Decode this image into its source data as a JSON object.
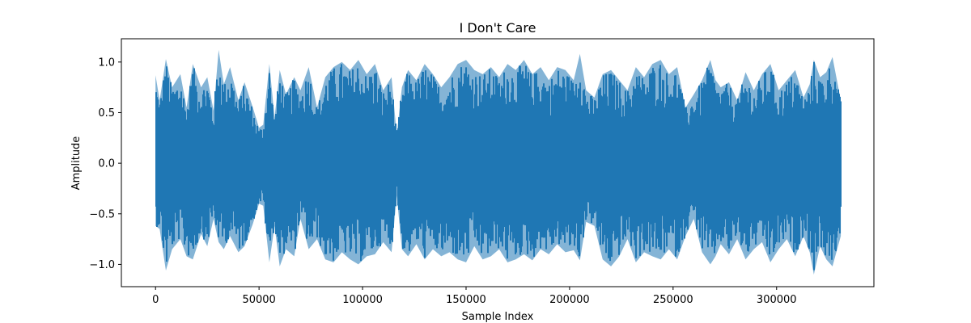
{
  "chart_data": {
    "type": "line",
    "title": "I Don't Care",
    "xlabel": "Sample Index",
    "ylabel": "Amplitude",
    "xlim": [
      -16500,
      347000
    ],
    "ylim": [
      -1.22,
      1.23
    ],
    "x_ticks": [
      0,
      50000,
      100000,
      150000,
      200000,
      250000,
      300000
    ],
    "x_tick_labels": [
      "0",
      "50000",
      "100000",
      "150000",
      "200000",
      "250000",
      "300000"
    ],
    "y_ticks": [
      -1.0,
      -0.5,
      0.0,
      0.5,
      1.0
    ],
    "y_tick_labels": [
      "−1.0",
      "−0.5",
      "0.0",
      "0.5",
      "1.0"
    ],
    "grid": false,
    "series": [
      {
        "color": "#1f77b4",
        "x_start": 0,
        "x_end": 331000,
        "envelope": {
          "x": [
            0,
            2000,
            5000,
            8000,
            12000,
            15000,
            18000,
            22000,
            25000,
            28000,
            30500,
            33000,
            36000,
            40000,
            43000,
            47000,
            50000,
            52000,
            55000,
            57500,
            60000,
            63000,
            67000,
            70000,
            74000,
            78000,
            82000,
            86000,
            90000,
            94000,
            98000,
            102000,
            106000,
            110000,
            114000,
            116500,
            119000,
            122000,
            126000,
            130000,
            134000,
            138000,
            142000,
            146000,
            150000,
            154000,
            158000,
            162000,
            166000,
            170000,
            174000,
            178000,
            182000,
            186000,
            190000,
            194000,
            198000,
            202000,
            205000,
            208000,
            212000,
            216000,
            220000,
            224000,
            228000,
            232000,
            236000,
            240000,
            244000,
            248000,
            252000,
            256000,
            260000,
            264000,
            268000,
            270500,
            273000,
            277000,
            281000,
            285000,
            289000,
            293000,
            297000,
            301000,
            305000,
            309000,
            313000,
            316000,
            318000,
            321000,
            324000,
            327000,
            331000
          ],
          "upper": [
            0.87,
            0.62,
            1.03,
            0.75,
            0.88,
            0.55,
            0.98,
            0.75,
            0.85,
            0.52,
            1.12,
            0.78,
            0.95,
            0.62,
            0.8,
            0.55,
            0.35,
            0.38,
            0.98,
            0.45,
            0.92,
            0.68,
            0.85,
            0.72,
            0.95,
            0.55,
            0.85,
            0.95,
            1.0,
            0.92,
            1.02,
            0.88,
            0.98,
            0.72,
            0.85,
            0.28,
            0.75,
            0.92,
            0.82,
            0.98,
            0.88,
            0.75,
            0.85,
            0.98,
            1.02,
            0.92,
            0.88,
            0.95,
            0.85,
            0.98,
            0.92,
            1.02,
            0.88,
            0.95,
            0.82,
            0.95,
            0.92,
            0.82,
            1.08,
            0.72,
            0.65,
            0.88,
            0.92,
            0.82,
            0.72,
            0.95,
            0.85,
            0.98,
            1.02,
            0.88,
            0.95,
            0.55,
            0.68,
            0.82,
            1.02,
            0.82,
            0.75,
            0.8,
            0.62,
            0.9,
            0.72,
            0.88,
            0.98,
            0.72,
            0.82,
            0.92,
            0.65,
            0.78,
            1.02,
            0.85,
            0.9,
            1.05,
            0.62
          ],
          "lower": [
            -0.62,
            -0.65,
            -1.06,
            -0.85,
            -0.75,
            -0.92,
            -0.95,
            -0.7,
            -0.82,
            -0.55,
            -0.78,
            -0.85,
            -0.72,
            -0.88,
            -0.82,
            -0.6,
            -0.4,
            -0.42,
            -0.98,
            -0.62,
            -1.02,
            -0.85,
            -0.92,
            -0.55,
            -0.85,
            -0.75,
            -0.95,
            -0.98,
            -0.88,
            -0.95,
            -1.0,
            -0.92,
            -0.9,
            -0.78,
            -0.88,
            -0.32,
            -0.85,
            -0.92,
            -0.8,
            -0.95,
            -0.85,
            -0.92,
            -0.88,
            -0.95,
            -0.98,
            -0.82,
            -0.95,
            -0.92,
            -0.85,
            -0.98,
            -0.95,
            -0.9,
            -0.96,
            -0.85,
            -0.9,
            -0.8,
            -0.88,
            -0.86,
            -0.96,
            -0.58,
            -0.62,
            -0.95,
            -1.02,
            -0.92,
            -0.75,
            -0.98,
            -0.88,
            -0.92,
            -0.95,
            -0.85,
            -0.95,
            -0.72,
            -0.55,
            -0.88,
            -1.0,
            -0.92,
            -0.8,
            -0.9,
            -0.75,
            -0.95,
            -0.85,
            -0.78,
            -0.98,
            -0.85,
            -0.75,
            -0.92,
            -0.72,
            -0.88,
            -1.1,
            -0.82,
            -0.95,
            -1.02,
            -0.72
          ]
        }
      }
    ]
  }
}
